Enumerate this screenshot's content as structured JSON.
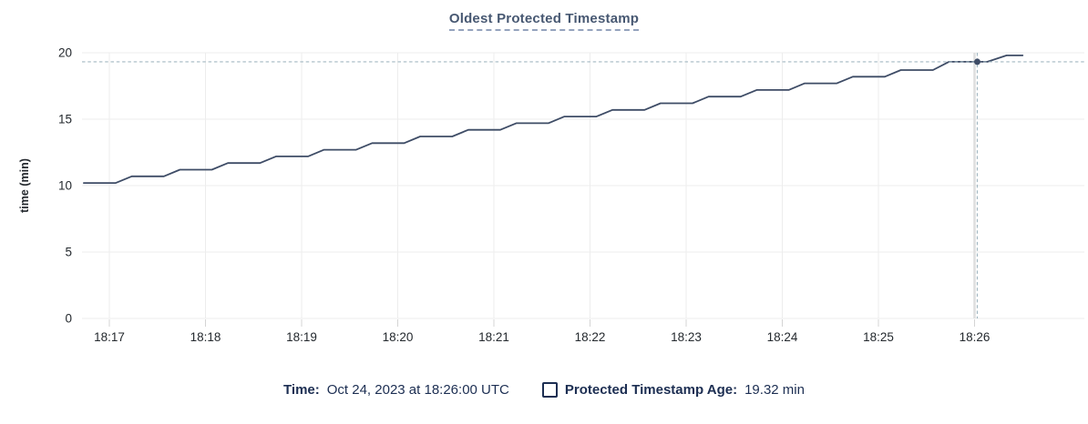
{
  "title": "Oldest Protected Timestamp",
  "footer": {
    "time_label": "Time:",
    "time_value": "Oct 24, 2023 at 18:26:00 UTC",
    "series_label": "Protected Timestamp Age:",
    "series_value": "19.32 min"
  },
  "colors": {
    "line": "#3e4c66",
    "point": "#3e4c66",
    "crosshair": "#a3b8c2",
    "grid": "#ededed",
    "tick": "#d4d4d4",
    "hover_band": "#dedede",
    "title_text": "#475872",
    "title_underline": "#94a3bd",
    "footer_text": "#1c2e52",
    "axis_text": "#24292e",
    "background": "#ffffff"
  },
  "chart_data": {
    "type": "line",
    "title": "Oldest Protected Timestamp",
    "xlabel": "",
    "ylabel": "time (min)",
    "ylim": [
      0,
      20
    ],
    "y_ticks": [
      0,
      5,
      10,
      15,
      20
    ],
    "x_ticks": [
      "18:17",
      "18:18",
      "18:19",
      "18:20",
      "18:21",
      "18:22",
      "18:23",
      "18:24",
      "18:25",
      "18:26"
    ],
    "grid": true,
    "legend_position": "bottom",
    "series": [
      {
        "name": "Protected Timestamp Age",
        "unit": "min",
        "points": [
          [
            "18:16:44",
            10.2
          ],
          [
            "18:17:04",
            10.2
          ],
          [
            "18:17:14",
            10.7
          ],
          [
            "18:17:34",
            10.7
          ],
          [
            "18:17:44",
            11.2
          ],
          [
            "18:18:04",
            11.2
          ],
          [
            "18:18:14",
            11.7
          ],
          [
            "18:18:34",
            11.7
          ],
          [
            "18:18:44",
            12.2
          ],
          [
            "18:19:04",
            12.2
          ],
          [
            "18:19:14",
            12.7
          ],
          [
            "18:19:34",
            12.7
          ],
          [
            "18:19:44",
            13.2
          ],
          [
            "18:20:04",
            13.2
          ],
          [
            "18:20:14",
            13.7
          ],
          [
            "18:20:34",
            13.7
          ],
          [
            "18:20:44",
            14.2
          ],
          [
            "18:21:04",
            14.2
          ],
          [
            "18:21:14",
            14.7
          ],
          [
            "18:21:34",
            14.7
          ],
          [
            "18:21:44",
            15.2
          ],
          [
            "18:22:04",
            15.2
          ],
          [
            "18:22:14",
            15.7
          ],
          [
            "18:22:34",
            15.7
          ],
          [
            "18:22:44",
            16.2
          ],
          [
            "18:23:04",
            16.2
          ],
          [
            "18:23:14",
            16.7
          ],
          [
            "18:23:34",
            16.7
          ],
          [
            "18:23:44",
            17.2
          ],
          [
            "18:24:04",
            17.2
          ],
          [
            "18:24:14",
            17.7
          ],
          [
            "18:24:34",
            17.7
          ],
          [
            "18:24:44",
            18.2
          ],
          [
            "18:25:04",
            18.2
          ],
          [
            "18:25:14",
            18.7
          ],
          [
            "18:25:34",
            18.7
          ],
          [
            "18:25:44",
            19.32
          ],
          [
            "18:26:08",
            19.32
          ],
          [
            "18:26:20",
            19.8
          ],
          [
            "18:26:30",
            19.8
          ]
        ]
      }
    ],
    "hover": {
      "time": "18:26:00",
      "value": 19.32,
      "value_label": "19.32 min",
      "date_label": "Oct 24, 2023 at 18:26:00 UTC"
    }
  }
}
